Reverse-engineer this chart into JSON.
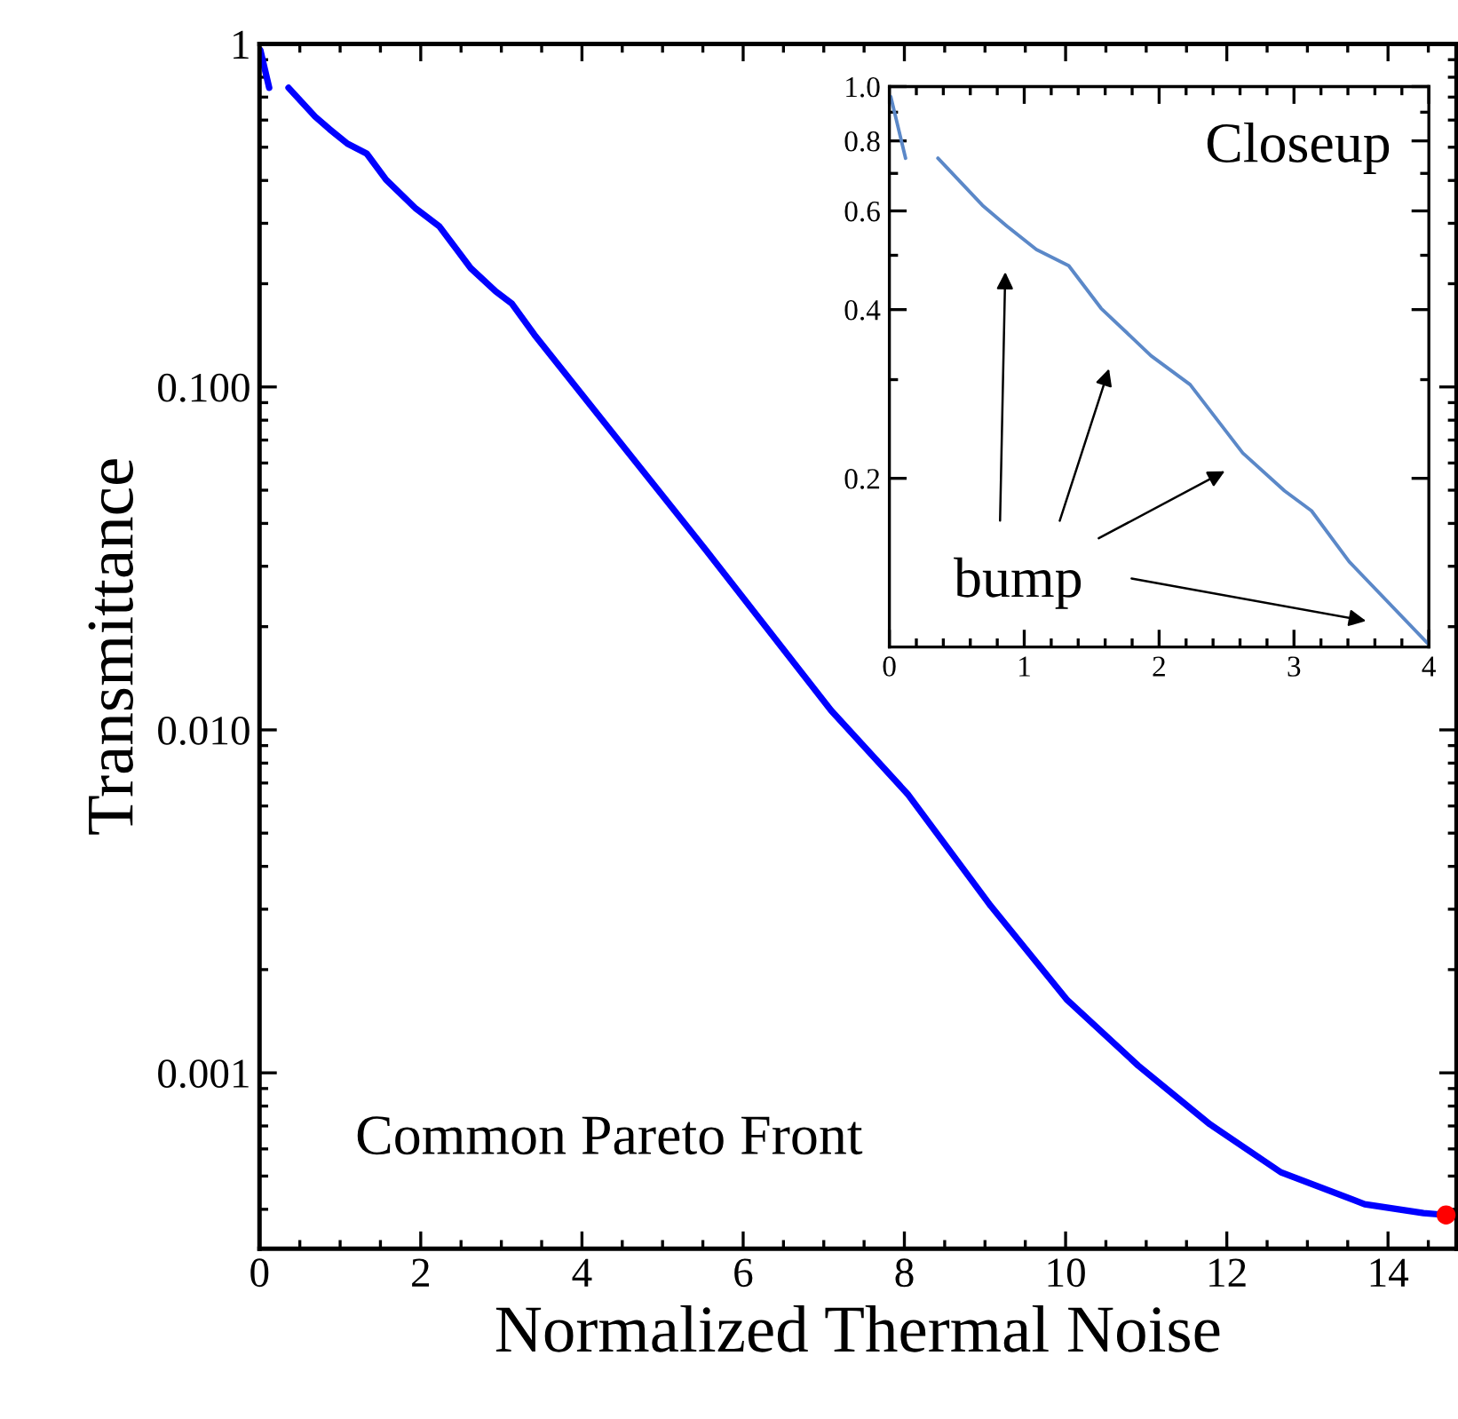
{
  "chart_data": [
    {
      "type": "line",
      "xlabel": "Normalized Thermal Noise",
      "ylabel": "Transmittance",
      "log": "y",
      "grid": false,
      "xlim": [
        0,
        14.85
      ],
      "ylim": [
        0.000307,
        1
      ],
      "xticks": [
        0,
        2,
        4,
        6,
        8,
        10,
        12,
        14
      ],
      "yticks": [
        1,
        {
          "value": 0.1,
          "label": "0.100"
        },
        {
          "value": 0.01,
          "label": "0.010"
        },
        {
          "value": 0.001,
          "label": "0.001"
        }
      ],
      "series": [
        {
          "color": "#0000ff",
          "marker": "none",
          "line_style": "solid",
          "x": [
            0.01,
            0.12,
            0.24,
            0.36,
            0.69,
            0.87,
            1.09,
            1.33,
            1.57,
            1.94,
            2.23,
            2.62,
            2.93,
            3.13,
            3.41,
            3.91,
            5.54,
            7.09,
            8.04,
            9.07,
            10.02,
            10.9,
            11.79,
            12.67,
            13.71,
            14.44,
            14.72
          ],
          "values": [
            0.96,
            0.745,
            null,
            0.745,
            0.614,
            0.564,
            0.512,
            0.479,
            0.402,
            0.331,
            0.294,
            0.222,
            0.19,
            0.175,
            0.142,
            0.101,
            0.0334,
            0.0114,
            0.0065,
            0.00307,
            0.00163,
            0.00105,
            0.000708,
            0.000513,
            0.000414,
            0.00039,
            0.000385
          ]
        },
        {
          "type": "scatter",
          "color": "#ff0000",
          "marker": "circle",
          "x": [
            14.72
          ],
          "values": [
            0.000385
          ]
        }
      ],
      "annotations": [
        "Common Pareto Front"
      ]
    },
    {
      "type": "line",
      "log": "y",
      "grid": false,
      "xlim": [
        0,
        4
      ],
      "ylim": [
        0.1,
        1.0
      ],
      "xticks": [
        0,
        1,
        2,
        3,
        4
      ],
      "yticks": [
        0.2,
        0.4,
        0.6,
        0.8,
        {
          "value": 1.0,
          "label": "1.0"
        }
      ],
      "series": [
        {
          "color": "#5b88c8",
          "marker": "none",
          "line_style": "solid",
          "x": [
            0.01,
            0.12,
            0.24,
            0.36,
            0.69,
            0.87,
            1.09,
            1.33,
            1.57,
            1.94,
            2.23,
            2.62,
            2.93,
            3.13,
            3.41,
            4.0
          ],
          "values": [
            0.96,
            0.745,
            null,
            0.745,
            0.614,
            0.564,
            0.512,
            0.479,
            0.402,
            0.331,
            0.294,
            0.222,
            0.19,
            0.175,
            0.142,
            0.101
          ]
        }
      ],
      "annotations": [
        "Closeup",
        "bump"
      ]
    }
  ]
}
